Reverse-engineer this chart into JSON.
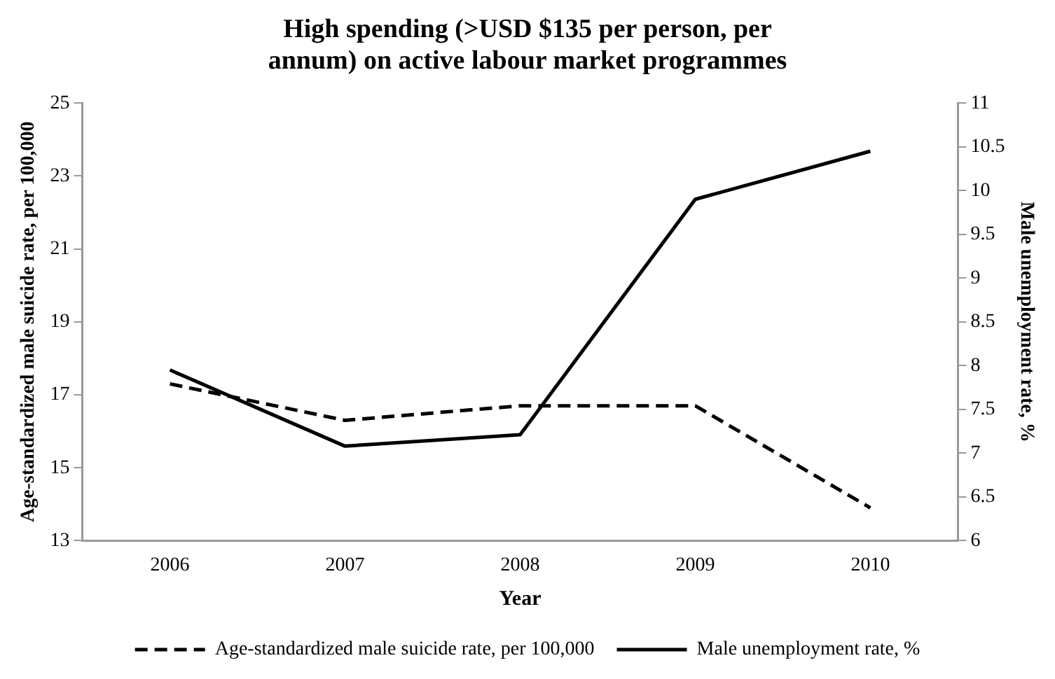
{
  "chart_data": {
    "type": "line",
    "title": "High spending (>USD $135 per person, per annum) on active labour market programmes",
    "xlabel": "Year",
    "ylabel": "Age-standardized male suicide rate, per 100,000",
    "y2label": "Male unemployment rate, %",
    "categories": [
      "2006",
      "2007",
      "2008",
      "2009",
      "2010"
    ],
    "series": [
      {
        "name": "Age-standardized male suicide rate, per 100,000",
        "color": "#000000",
        "line_style": "dashed",
        "values": [
          17.3,
          16.3,
          16.7,
          16.7,
          13.9
        ]
      },
      {
        "name": "Male unemployment rate, %",
        "color": "#000000",
        "line_style": "solid",
        "axis": "y2",
        "values": [
          7.95,
          7.08,
          7.21,
          9.9,
          10.45
        ]
      }
    ],
    "ylim": [
      13,
      25
    ],
    "yticks": [
      13,
      15,
      17,
      19,
      21,
      23,
      25
    ],
    "y2lim": [
      6,
      11
    ],
    "y2ticks": [
      6,
      6.5,
      7,
      7.5,
      8,
      8.5,
      9,
      9.5,
      10,
      10.5,
      11
    ],
    "grid": false,
    "legend": "bottom",
    "marker": "none"
  }
}
